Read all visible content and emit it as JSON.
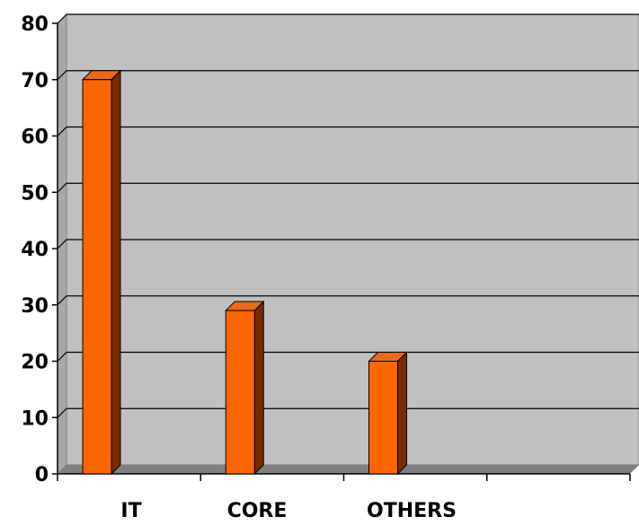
{
  "chart_data": {
    "type": "bar",
    "categories": [
      "IT",
      "CORE",
      "OTHERS",
      ""
    ],
    "values": [
      70,
      29,
      20,
      null
    ],
    "title": "",
    "xlabel": "",
    "ylabel": "",
    "ylim": [
      0,
      80
    ],
    "yticks": [
      "0",
      "10",
      "20",
      "30",
      "40",
      "50",
      "60",
      "70",
      "80"
    ],
    "grid": true,
    "legend": "none",
    "style": "3d",
    "colors": {
      "bar_front": "#ff6600",
      "bar_side": "#7a2a00",
      "bar_top": "#e86a1a",
      "plot_back": "#c0c0c0",
      "plot_floor": "#808080",
      "grid": "#000000"
    }
  }
}
